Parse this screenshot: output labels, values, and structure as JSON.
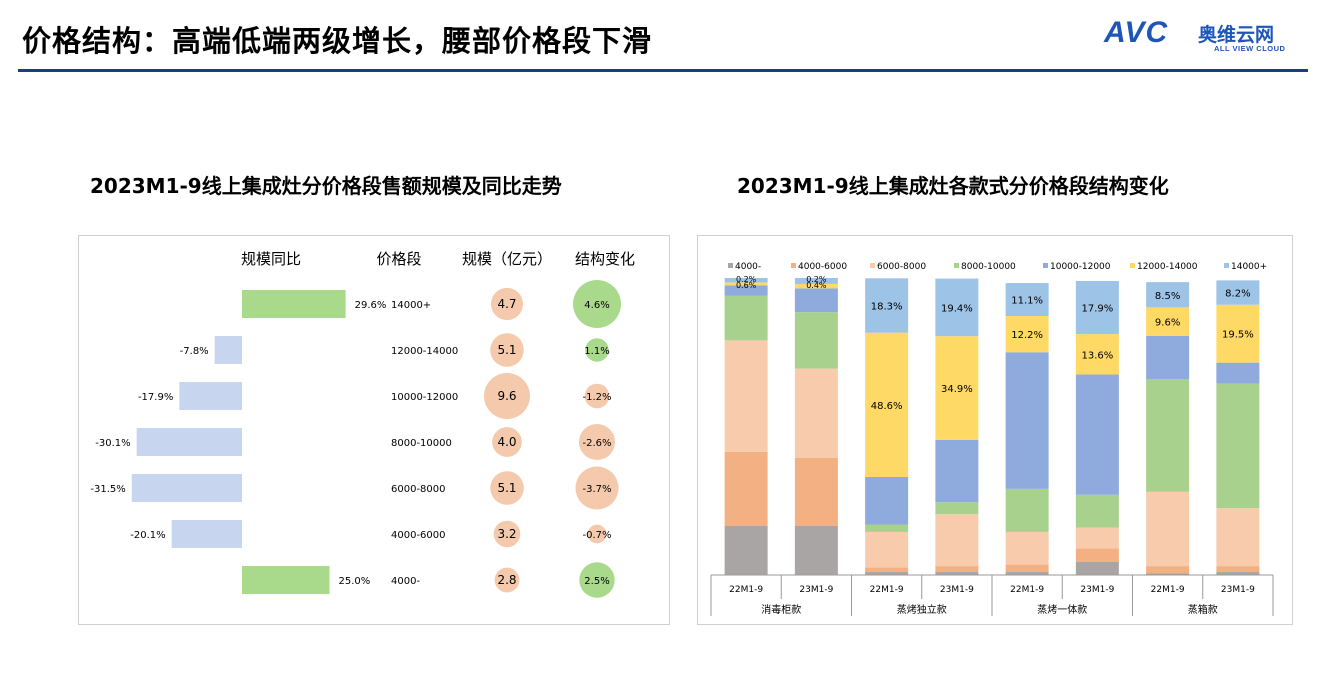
{
  "page": {
    "title": "价格结构：高端低端两级增长，腰部价格段下滑",
    "logo": {
      "brand": "AVC",
      "cn": "奥维云网",
      "en": "ALL VIEW CLOUD"
    }
  },
  "colors": {
    "accent_rule": "#1a3a8a",
    "positive": "#a9d98b",
    "negative": "#c7d5ee",
    "bubble_size": "#f5c9ab",
    "struct_pos": "#a9d98b",
    "struct_neg": "#f5c9ab"
  },
  "chart_data": [
    {
      "type": "table",
      "title": "2023M1-9线上集成灶分价格段售额规模及同比走势",
      "headers": {
        "yoy": "规模同比",
        "segment": "价格段",
        "scale": "规模（亿元）",
        "structure": "结构变化"
      },
      "rows": [
        {
          "segment": "14000+",
          "yoy": 29.6,
          "yoy_label": "29.6%",
          "scale": 4.7,
          "scale_label": "4.7",
          "structure": 4.6,
          "structure_label": "4.6%"
        },
        {
          "segment": "12000-14000",
          "yoy": -7.8,
          "yoy_label": "-7.8%",
          "scale": 5.1,
          "scale_label": "5.1",
          "structure": 1.1,
          "structure_label": "1.1%"
        },
        {
          "segment": "10000-12000",
          "yoy": -17.9,
          "yoy_label": "-17.9%",
          "scale": 9.6,
          "scale_label": "9.6",
          "structure": -1.2,
          "structure_label": "-1.2%"
        },
        {
          "segment": "8000-10000",
          "yoy": -30.1,
          "yoy_label": "-30.1%",
          "scale": 4.0,
          "scale_label": "4.0",
          "structure": -2.6,
          "structure_label": "-2.6%"
        },
        {
          "segment": "6000-8000",
          "yoy": -31.5,
          "yoy_label": "-31.5%",
          "scale": 5.1,
          "scale_label": "5.1",
          "structure": -3.7,
          "structure_label": "-3.7%"
        },
        {
          "segment": "4000-6000",
          "yoy": -20.1,
          "yoy_label": "-20.1%",
          "scale": 3.2,
          "scale_label": "3.2",
          "structure": -0.7,
          "structure_label": "-0.7%"
        },
        {
          "segment": "4000-",
          "yoy": 25.0,
          "yoy_label": "25.0%",
          "scale": 2.8,
          "scale_label": "2.8",
          "structure": 2.5,
          "structure_label": "2.5%"
        }
      ]
    },
    {
      "type": "bar",
      "stacked": true,
      "percent_stacked": true,
      "title": "2023M1-9线上集成灶各款式分价格段结构变化",
      "ylim": [
        0,
        100
      ],
      "legend_position": "top",
      "categories": [
        "22M1-9",
        "23M1-9",
        "22M1-9",
        "23M1-9",
        "22M1-9",
        "23M1-9",
        "22M1-9",
        "23M1-9"
      ],
      "groups": [
        {
          "name": "消毒柜款",
          "span": 2
        },
        {
          "name": "蒸烤独立款",
          "span": 2
        },
        {
          "name": "蒸烤一体款",
          "span": 2
        },
        {
          "name": "蒸箱款",
          "span": 2
        }
      ],
      "series": [
        {
          "name": "4000-",
          "color": "#aaa5a5",
          "values": [
            16.5,
            16.5,
            1.0,
            1.0,
            1.0,
            4.5,
            0.5,
            1.0
          ],
          "labels": [
            "",
            "",
            "",
            "",
            "",
            "",
            "",
            ""
          ]
        },
        {
          "name": "4000-6000",
          "color": "#f3b183",
          "values": [
            25.0,
            23.0,
            1.5,
            2.0,
            2.5,
            4.5,
            2.5,
            2.0
          ],
          "labels": [
            "",
            "",
            "",
            "",
            "",
            "",
            "",
            ""
          ]
        },
        {
          "name": "6000-8000",
          "color": "#f8cbad",
          "values": [
            37.5,
            30.0,
            12.0,
            17.5,
            11.0,
            7.0,
            25.0,
            19.5
          ],
          "labels": [
            "",
            "",
            "",
            "",
            "",
            "",
            "",
            ""
          ]
        },
        {
          "name": "8000-10000",
          "color": "#a9d18e",
          "values": [
            15.0,
            19.0,
            2.5,
            4.0,
            14.5,
            11.0,
            38.0,
            42.0
          ],
          "labels": [
            "",
            "",
            "",
            "",
            "",
            "",
            "",
            ""
          ]
        },
        {
          "name": "10000-12000",
          "color": "#8faadc",
          "values": [
            3.5,
            8.0,
            16.0,
            21.0,
            46.0,
            40.5,
            14.5,
            7.0
          ],
          "labels": [
            "",
            "",
            "",
            "",
            "",
            "",
            "",
            ""
          ]
        },
        {
          "name": "12000-14000",
          "color": "#ffd966",
          "values": [
            1.0,
            1.5,
            48.6,
            34.9,
            12.2,
            13.6,
            9.6,
            19.5
          ],
          "labels": [
            "",
            "",
            "48.6%",
            "34.9%",
            "12.2%",
            "13.6%",
            "9.6%",
            "19.5%"
          ]
        },
        {
          "name": "14000+",
          "color": "#9dc3e6",
          "values": [
            1.5,
            2.0,
            18.3,
            19.4,
            11.1,
            17.9,
            8.5,
            8.2
          ],
          "labels": [
            "",
            "",
            "18.3%",
            "19.4%",
            "11.1%",
            "17.9%",
            "8.5%",
            "8.2%"
          ]
        }
      ],
      "extra_labels": [
        {
          "category_index": 0,
          "text": "0.2%"
        },
        {
          "category_index": 0,
          "text": "0.6%"
        },
        {
          "category_index": 1,
          "text": "0.2%"
        },
        {
          "category_index": 1,
          "text": "0.4%"
        }
      ]
    }
  ]
}
